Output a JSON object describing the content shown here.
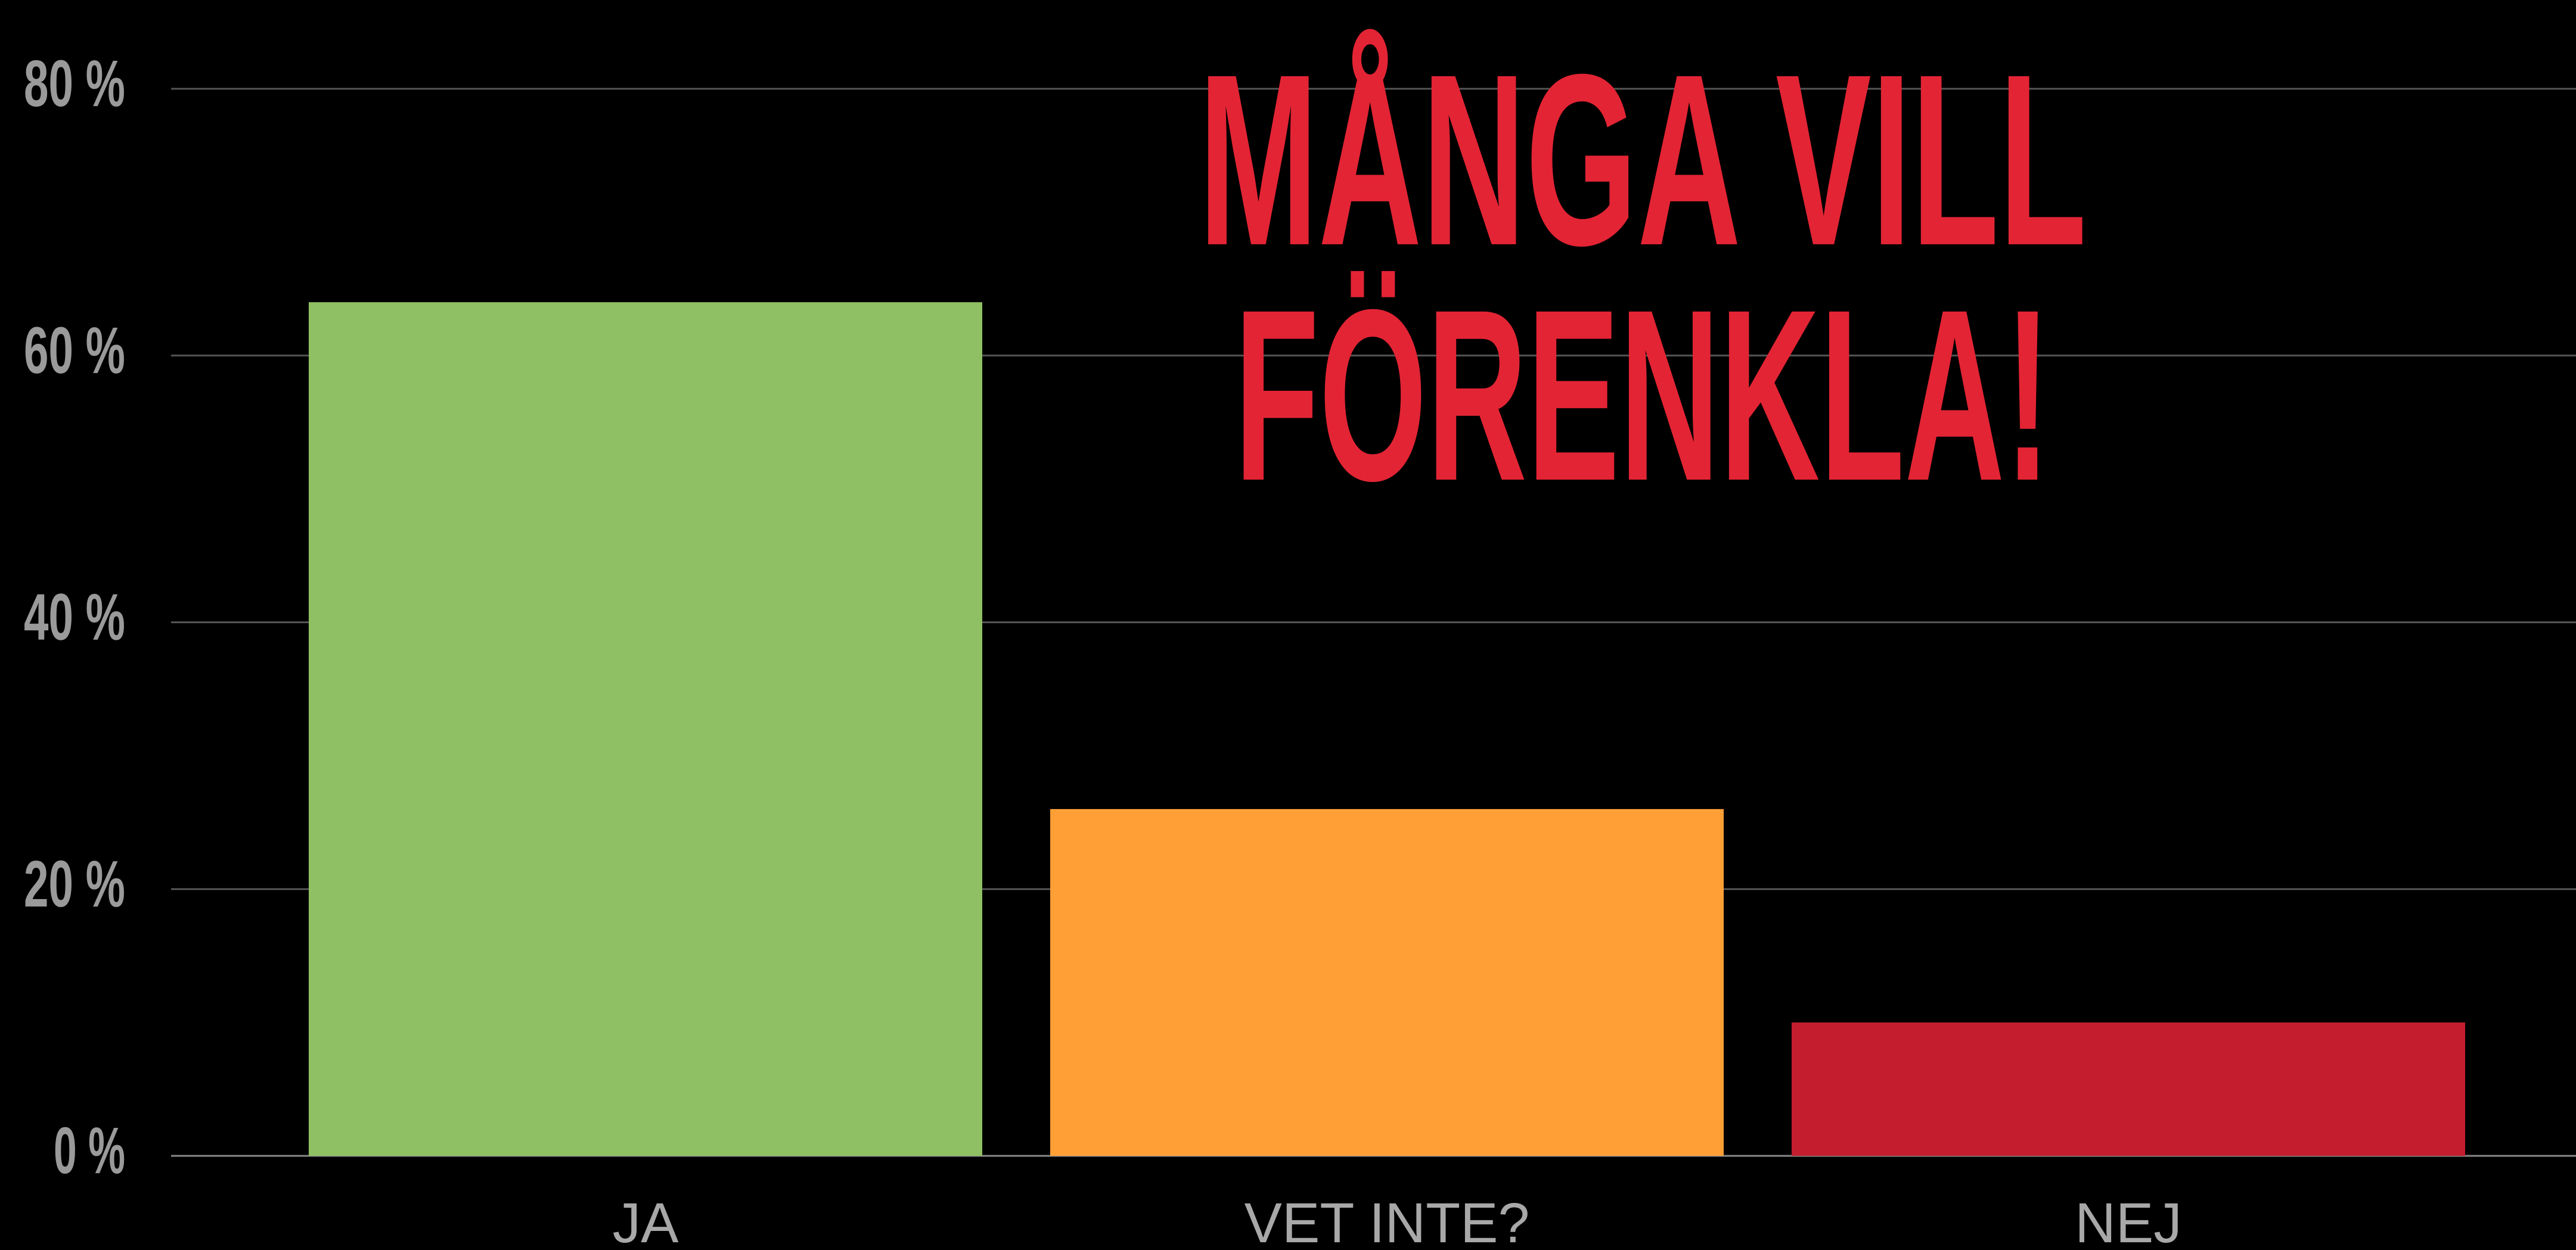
{
  "chart_data": {
    "type": "bar",
    "title": [
      "MÅNGA VILL",
      "FÖRENKLA!"
    ],
    "categories": [
      "JA",
      "VET INTE?",
      "NEJ"
    ],
    "values": [
      64,
      26,
      10
    ],
    "colors": [
      "#8fc063",
      "#ff9f36",
      "#c41e2e"
    ],
    "ylim": [
      0,
      80
    ],
    "yticks": [
      {
        "value": 0,
        "label": "0 %"
      },
      {
        "value": 20,
        "label": "20 %"
      },
      {
        "value": 40,
        "label": "40 %"
      },
      {
        "value": 60,
        "label": "60 %"
      },
      {
        "value": 80,
        "label": "80 %"
      }
    ],
    "grid": true
  }
}
